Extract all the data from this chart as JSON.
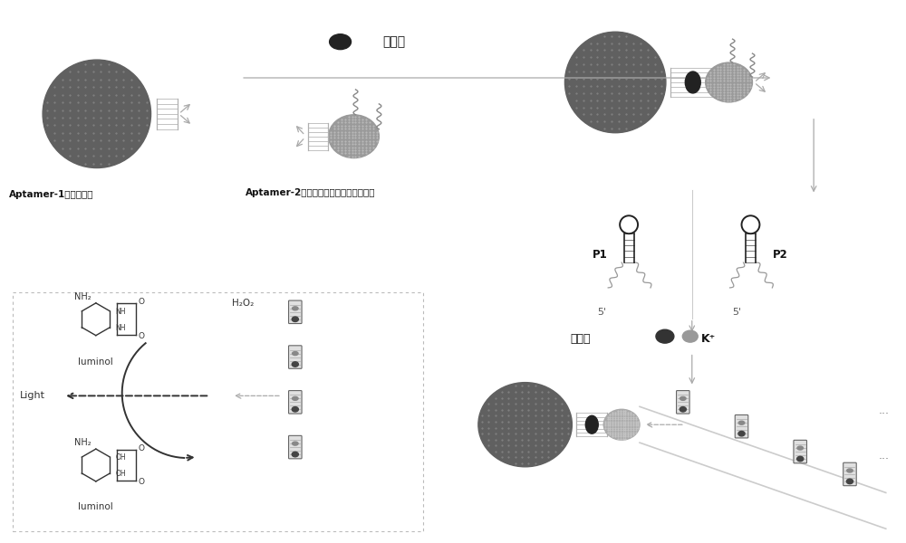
{
  "bg_color": "#ffffff",
  "fig_width": 10.0,
  "fig_height": 6.0,
  "labels": {
    "aptamer1": "Aptamer-1功能化微球",
    "aptamer2": "Aptamer-2和引发探针功能化金纳米飕粒",
    "thrombin": "凝血酶",
    "hemin": "血红素",
    "kplus": "K⁺",
    "light": "Light",
    "luminol": "luminol",
    "h2o2": "H₂O₂",
    "p1": "P1",
    "p2": "P2",
    "five_prime1": "5'",
    "five_prime2": "5'"
  },
  "colors": {
    "dark_sphere": "#606060",
    "dot_on_sphere": "#888888",
    "light_np": "#aaaaaa",
    "dot_on_np": "#cccccc",
    "thrombin_dark": "#2a2a2a",
    "hemin_dark": "#333333",
    "kplus_gray": "#aaaaaa",
    "dna_color": "#aaaaaa",
    "wavy_color": "#888888",
    "hairpin_color": "#333333",
    "chem_color": "#333333",
    "arrow_gray": "#aaaaaa",
    "box_border": "#cccccc",
    "cyl_face": "#e0e0e0",
    "cyl_line": "#aaaaaa",
    "cyl_dark_oval": "#444444",
    "cyl_mid_oval": "#888888",
    "strand_color": "#bbbbbb",
    "black": "#111111"
  }
}
